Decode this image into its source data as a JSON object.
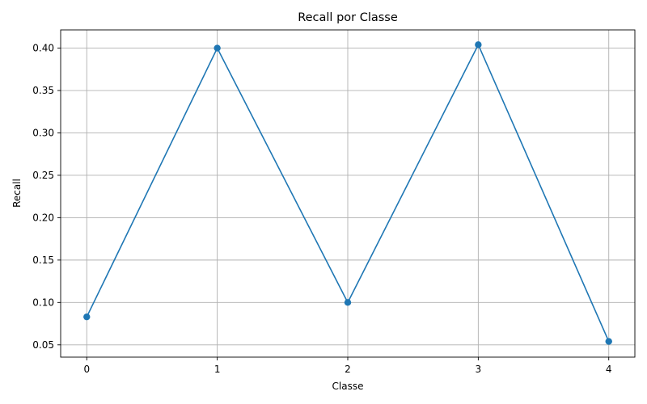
{
  "chart_data": {
    "type": "line",
    "title": "Recall por Classe",
    "xlabel": "Classe",
    "ylabel": "Recall",
    "x": [
      0,
      1,
      2,
      3,
      4
    ],
    "series": [
      {
        "values": [
          0.083,
          0.4,
          0.1,
          0.404,
          0.054
        ],
        "color": "#1f77b4",
        "marker": "circle"
      }
    ],
    "xlim": [
      -0.2,
      4.2
    ],
    "ylim": [
      0.0355,
      0.4215
    ],
    "xticks": [
      0,
      1,
      2,
      3,
      4
    ],
    "xtick_labels": [
      "0",
      "1",
      "2",
      "3",
      "4"
    ],
    "yticks": [
      0.05,
      0.1,
      0.15,
      0.2,
      0.25,
      0.3,
      0.35,
      0.4
    ],
    "ytick_labels": [
      "0.05",
      "0.10",
      "0.15",
      "0.20",
      "0.25",
      "0.30",
      "0.35",
      "0.40"
    ],
    "grid": true,
    "legend": false
  }
}
